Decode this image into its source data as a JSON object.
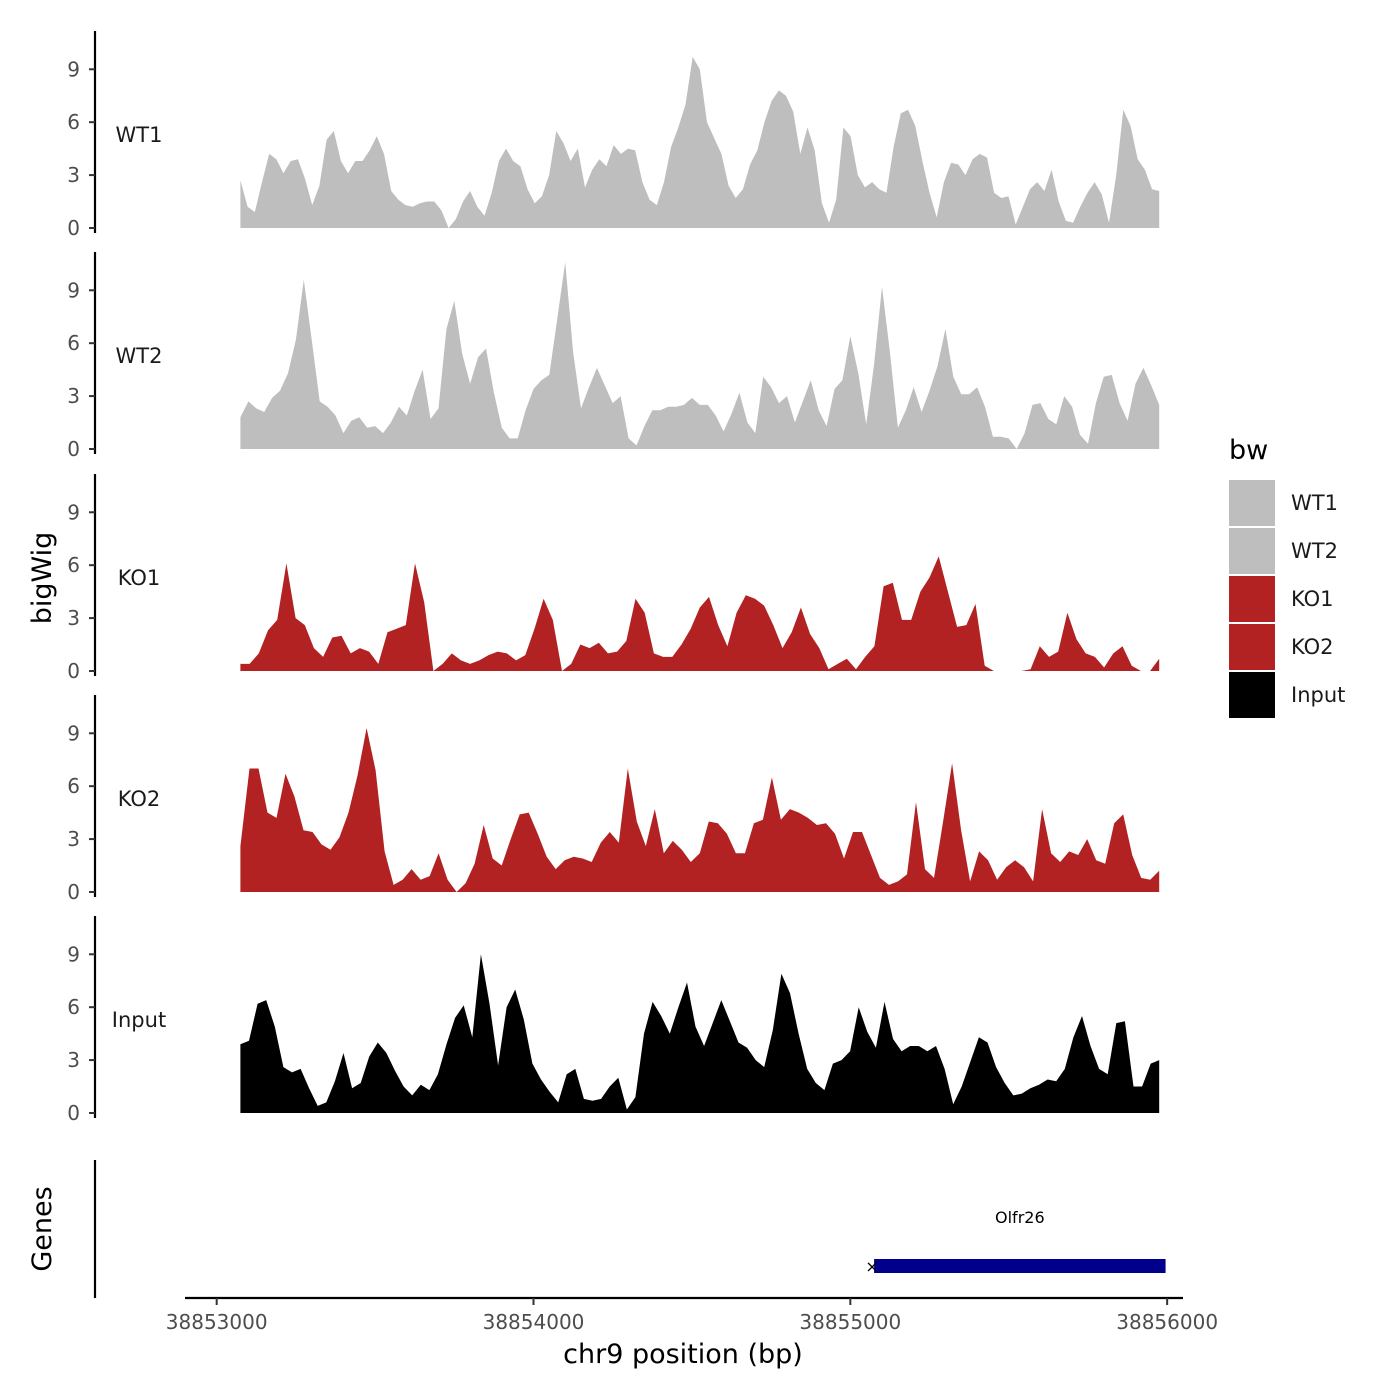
{
  "chart_data": {
    "type": "area",
    "ylabel": "bigWig",
    "genes_label": "Genes",
    "xlabel": "chr9 position (bp)",
    "xlim": [
      38852900,
      38856050
    ],
    "x_ticks": [
      38853000,
      38854000,
      38855000,
      38856000
    ],
    "x_tick_labels": [
      "38853000",
      "38854000",
      "38855000",
      "38856000"
    ],
    "ylim": [
      0,
      11
    ],
    "y_ticks": [
      0,
      3,
      6,
      9
    ],
    "y_tick_labels": [
      "0",
      "3",
      "6",
      "9"
    ],
    "data_range": [
      38853075,
      38855975
    ],
    "legend": {
      "title": "bw",
      "items": [
        {
          "label": "WT1",
          "color": "#bebebe"
        },
        {
          "label": "WT2",
          "color": "#bebebe"
        },
        {
          "label": "KO1",
          "color": "#b22222"
        },
        {
          "label": "KO2",
          "color": "#b22222"
        },
        {
          "label": "Input",
          "color": "#000000"
        }
      ]
    },
    "series": [
      {
        "name": "WT1",
        "color": "#bebebe",
        "values": [
          2.7,
          1.2,
          0.9,
          2.6,
          4.2,
          3.9,
          3.1,
          3.8,
          3.9,
          2.8,
          1.3,
          2.4,
          5.0,
          5.5,
          3.8,
          3.1,
          3.8,
          3.8,
          4.4,
          5.2,
          4.2,
          2.1,
          1.6,
          1.3,
          1.2,
          1.4,
          1.5,
          1.5,
          1.0,
          0.0,
          0.5,
          1.5,
          2.1,
          1.2,
          0.7,
          2.0,
          3.8,
          4.5,
          3.8,
          3.5,
          2.2,
          1.4,
          1.8,
          3.0,
          5.5,
          4.8,
          3.8,
          4.5,
          2.3,
          3.3,
          3.9,
          3.5,
          4.7,
          4.2,
          4.5,
          4.4,
          2.6,
          1.6,
          1.3,
          2.6,
          4.6,
          5.7,
          7.0,
          9.7,
          9.0,
          6.0,
          5.1,
          4.2,
          2.4,
          1.7,
          2.2,
          3.6,
          4.4,
          6.0,
          7.2,
          7.8,
          7.5,
          6.6,
          4.2,
          5.7,
          4.4,
          1.4,
          0.3,
          1.6,
          5.7,
          5.2,
          3.0,
          2.3,
          2.6,
          2.2,
          2.0,
          4.6,
          6.5,
          6.7,
          5.8,
          3.8,
          2.0,
          0.6,
          2.6,
          3.7,
          3.6,
          3.0,
          3.9,
          4.2,
          4.0,
          2.0,
          1.7,
          1.8,
          0.2,
          1.2,
          2.2,
          2.6,
          2.1,
          3.3,
          1.5,
          0.4,
          0.3,
          1.2,
          2.0,
          2.6,
          1.9,
          0.3,
          3.0,
          6.7,
          5.8,
          3.9,
          3.3,
          2.2,
          2.1
        ]
      },
      {
        "name": "WT2",
        "color": "#bebebe",
        "values": [
          1.8,
          2.7,
          2.3,
          2.1,
          2.9,
          3.3,
          4.3,
          6.2,
          9.6,
          6.2,
          2.7,
          2.4,
          1.9,
          0.9,
          1.6,
          1.8,
          1.2,
          1.3,
          0.9,
          1.5,
          2.4,
          1.9,
          3.3,
          4.5,
          1.7,
          2.3,
          6.8,
          8.4,
          5.4,
          3.7,
          5.2,
          5.7,
          3.2,
          1.2,
          0.6,
          0.6,
          2.2,
          3.4,
          3.9,
          4.2,
          7.4,
          10.6,
          5.5,
          2.3,
          3.5,
          4.6,
          3.6,
          2.6,
          3.0,
          0.6,
          0.2,
          1.3,
          2.2,
          2.2,
          2.4,
          2.4,
          2.5,
          2.9,
          2.5,
          2.5,
          1.9,
          1.0,
          2.0,
          3.2,
          1.5,
          0.9,
          4.1,
          3.5,
          2.6,
          3.0,
          1.5,
          2.7,
          3.9,
          2.2,
          1.3,
          3.4,
          3.9,
          6.4,
          4.3,
          1.4,
          4.8,
          9.2,
          5.5,
          1.2,
          2.2,
          3.5,
          2.1,
          3.3,
          4.7,
          6.8,
          4.1,
          3.1,
          3.1,
          3.5,
          2.4,
          0.7,
          0.7,
          0.6,
          0.0,
          0.9,
          2.5,
          2.6,
          1.7,
          1.4,
          3.0,
          2.4,
          0.8,
          0.3,
          2.6,
          4.1,
          4.2,
          2.6,
          1.6,
          3.7,
          4.6,
          3.6,
          2.5
        ]
      },
      {
        "name": "KO1",
        "color": "#b22222",
        "values": [
          0.4,
          0.4,
          1.0,
          2.3,
          2.9,
          6.1,
          3.0,
          2.6,
          1.3,
          0.8,
          1.9,
          2.0,
          1.0,
          1.3,
          1.1,
          0.4,
          2.2,
          2.4,
          2.6,
          6.1,
          3.9,
          0.0,
          0.4,
          1.0,
          0.6,
          0.4,
          0.6,
          0.9,
          1.1,
          1.0,
          0.6,
          0.9,
          2.4,
          4.1,
          2.9,
          0.0,
          0.4,
          1.5,
          1.3,
          1.6,
          1.0,
          1.1,
          1.7,
          4.1,
          3.3,
          1.0,
          0.8,
          0.8,
          1.5,
          2.4,
          3.6,
          4.2,
          2.6,
          1.4,
          3.3,
          4.3,
          4.1,
          3.7,
          2.6,
          1.3,
          2.2,
          3.6,
          2.1,
          1.3,
          0.1,
          0.4,
          0.7,
          0.1,
          0.8,
          1.4,
          4.8,
          5.0,
          2.9,
          2.9,
          4.5,
          5.3,
          6.5,
          4.5,
          2.5,
          2.6,
          3.8,
          0.3,
          0.0,
          0.0,
          0.0,
          0.0,
          0.1,
          1.4,
          0.8,
          1.1,
          3.3,
          1.8,
          1.0,
          0.8,
          0.2,
          1.0,
          1.4,
          0.3,
          0.0,
          0.0,
          0.7
        ]
      },
      {
        "name": "KO2",
        "color": "#b22222",
        "values": [
          2.6,
          7.0,
          7.0,
          4.5,
          4.2,
          6.7,
          5.4,
          3.5,
          3.4,
          2.7,
          2.4,
          3.1,
          4.5,
          6.6,
          9.3,
          6.9,
          2.3,
          0.4,
          0.7,
          1.3,
          0.7,
          0.9,
          2.2,
          0.7,
          0.0,
          0.5,
          1.6,
          3.8,
          1.9,
          1.5,
          3.0,
          4.4,
          4.5,
          3.3,
          2.0,
          1.3,
          1.8,
          2.0,
          1.9,
          1.7,
          2.8,
          3.4,
          2.8,
          7.0,
          4.0,
          2.6,
          4.7,
          2.2,
          2.9,
          2.4,
          1.7,
          2.2,
          4.0,
          3.9,
          3.3,
          2.2,
          2.2,
          3.9,
          4.1,
          6.5,
          4.1,
          4.7,
          4.5,
          4.2,
          3.8,
          3.9,
          3.3,
          1.9,
          3.4,
          3.4,
          2.1,
          0.8,
          0.4,
          0.6,
          1.0,
          5.1,
          1.3,
          0.8,
          4.0,
          7.3,
          3.5,
          0.6,
          2.3,
          1.8,
          0.7,
          1.4,
          1.8,
          1.4,
          0.6,
          4.7,
          2.2,
          1.7,
          2.3,
          2.1,
          3.0,
          1.8,
          1.6,
          3.9,
          4.4,
          2.1,
          0.8,
          0.7,
          1.2
        ]
      },
      {
        "name": "Input",
        "color": "#000000",
        "values": [
          3.9,
          4.1,
          6.2,
          6.4,
          4.9,
          2.6,
          2.3,
          2.5,
          1.4,
          0.4,
          0.6,
          1.8,
          3.4,
          1.4,
          1.7,
          3.2,
          4.0,
          3.4,
          2.4,
          1.5,
          1.0,
          1.6,
          1.3,
          2.2,
          3.9,
          5.4,
          6.1,
          4.3,
          9.0,
          6.2,
          2.7,
          6.0,
          7.0,
          5.3,
          2.8,
          1.9,
          1.2,
          0.6,
          2.2,
          2.5,
          0.8,
          0.7,
          0.8,
          1.5,
          2.0,
          0.2,
          0.9,
          4.5,
          6.3,
          5.5,
          4.5,
          6.0,
          7.4,
          4.9,
          3.8,
          5.1,
          6.4,
          5.2,
          4.0,
          3.7,
          3.0,
          2.6,
          4.7,
          7.9,
          6.8,
          4.5,
          2.5,
          1.7,
          1.3,
          2.8,
          3.0,
          3.5,
          6.0,
          4.6,
          3.7,
          6.3,
          4.2,
          3.5,
          3.8,
          3.8,
          3.5,
          3.8,
          2.5,
          0.5,
          1.5,
          2.9,
          4.3,
          4.0,
          2.6,
          1.7,
          1.0,
          1.1,
          1.4,
          1.6,
          1.9,
          1.8,
          2.5,
          4.3,
          5.5,
          3.8,
          2.5,
          2.2,
          5.1,
          5.2,
          1.5,
          1.5,
          2.8,
          3.0
        ]
      }
    ],
    "gene": {
      "name": "Olfr26",
      "start": 38855075,
      "end": 38855995,
      "color": "#00008b"
    }
  }
}
